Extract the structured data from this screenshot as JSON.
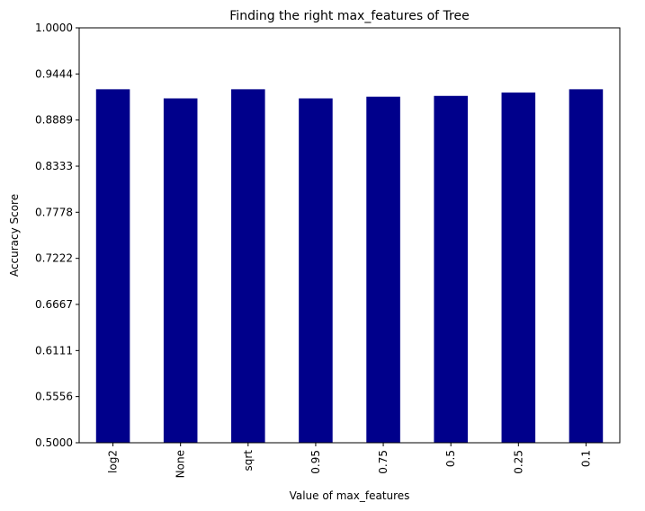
{
  "chart_data": {
    "type": "bar",
    "title": "Finding the right max_features of Tree",
    "xlabel": "Value of max_features",
    "ylabel": "Accuracy Score",
    "categories": [
      "log2",
      "None",
      "sqrt",
      "0.95",
      "0.75",
      "0.5",
      "0.25",
      "0.1"
    ],
    "values": [
      0.926,
      0.915,
      0.926,
      0.915,
      0.917,
      0.918,
      0.922,
      0.926
    ],
    "ylim": [
      0.5,
      1.0
    ],
    "yticks": [
      "0.5000",
      "0.5556",
      "0.6111",
      "0.6667",
      "0.7222",
      "0.7778",
      "0.8333",
      "0.8889",
      "0.9444",
      "1.0000"
    ],
    "bar_color": "#00008b",
    "grid": false,
    "x_tick_rotation": "vertical"
  }
}
